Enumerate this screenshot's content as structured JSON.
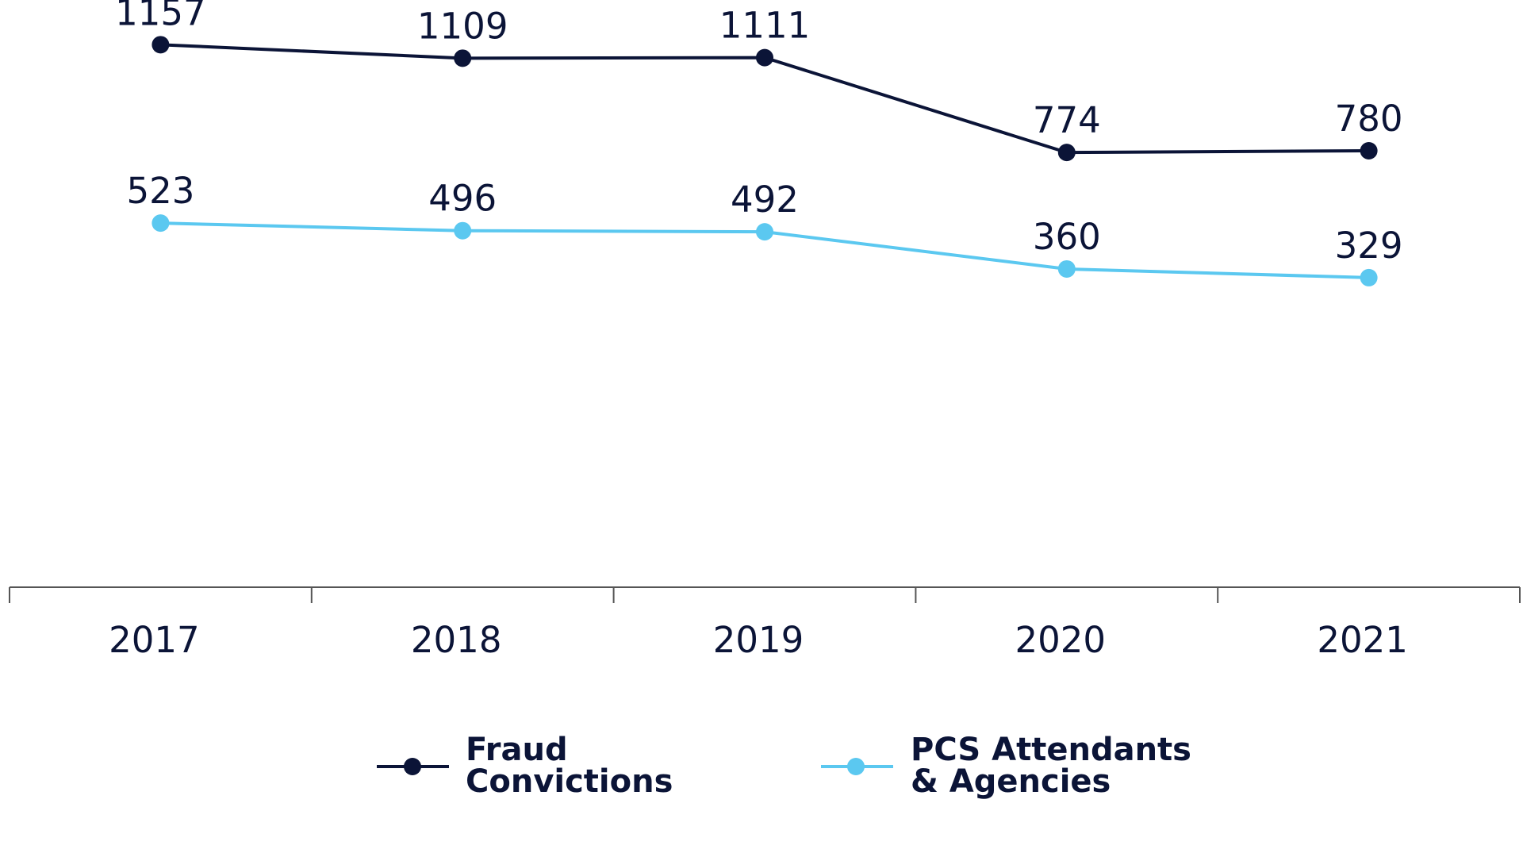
{
  "chart_data": {
    "type": "line",
    "categories": [
      "2017",
      "2018",
      "2019",
      "2020",
      "2021"
    ],
    "series": [
      {
        "name": "Fraud Convictions",
        "legend_lines": [
          "Fraud",
          "Convictions"
        ],
        "color": "#0b1437",
        "values": [
          1157,
          1109,
          1111,
          774,
          780
        ]
      },
      {
        "name": "PCS Attendants & Agencies",
        "legend_lines": [
          "PCS Attendants",
          "& Agencies"
        ],
        "color": "#5bc8f0",
        "values": [
          523,
          496,
          492,
          360,
          329
        ]
      }
    ],
    "axis_color": "#555555",
    "title": "",
    "xlabel": "",
    "ylabel": "",
    "grid": false,
    "legend_position": "bottom"
  }
}
